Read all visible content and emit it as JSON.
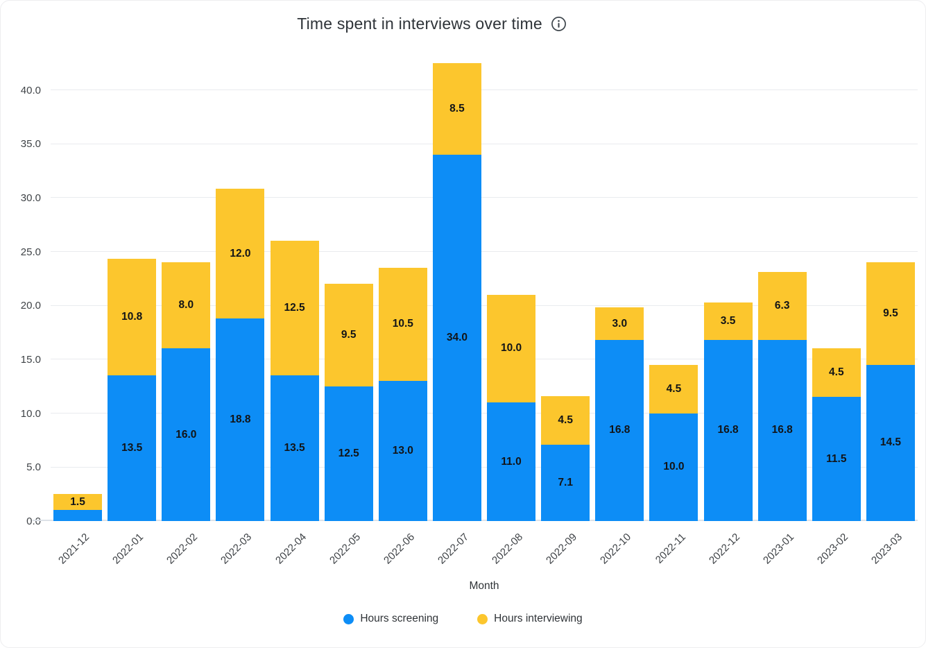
{
  "header": {
    "title": "Time spent in interviews over time",
    "info_icon": "info-circle-icon"
  },
  "chart_data": {
    "type": "bar",
    "stacked": true,
    "title": "Time spent in interviews over time",
    "xlabel": "Month",
    "ylabel": "",
    "categories": [
      "2021-12",
      "2022-01",
      "2022-02",
      "2022-03",
      "2022-04",
      "2022-05",
      "2022-06",
      "2022-07",
      "2022-08",
      "2022-09",
      "2022-10",
      "2022-11",
      "2022-12",
      "2023-01",
      "2023-02",
      "2023-03"
    ],
    "series": [
      {
        "name": "Hours screening",
        "color": "#0d8df6",
        "values": [
          1.0,
          13.5,
          16.0,
          18.8,
          13.5,
          12.5,
          13.0,
          34.0,
          11.0,
          7.1,
          16.8,
          10.0,
          16.8,
          16.8,
          11.5,
          14.5
        ]
      },
      {
        "name": "Hours interviewing",
        "color": "#fcc62d",
        "values": [
          1.5,
          10.8,
          8.0,
          12.0,
          12.5,
          9.5,
          10.5,
          8.5,
          10.0,
          4.5,
          3.0,
          4.5,
          3.5,
          6.3,
          4.5,
          9.5
        ]
      }
    ],
    "y_ticks": [
      0,
      5,
      10,
      15,
      20,
      25,
      30,
      35,
      40
    ],
    "y_tick_labels": [
      "0.0",
      "5.0",
      "10.0",
      "15.0",
      "20.0",
      "25.0",
      "30.0",
      "35.0",
      "40.0"
    ],
    "ylim": [
      0,
      42.8
    ],
    "grid": true,
    "legend_position": "bottom",
    "bar_label_format": "one-decimal"
  },
  "colors": {
    "screening": "#0d8df6",
    "interviewing": "#fcc62d",
    "gridline": "#e9ebee",
    "axis_text": "#3f4347",
    "title_text": "#2e3338"
  }
}
